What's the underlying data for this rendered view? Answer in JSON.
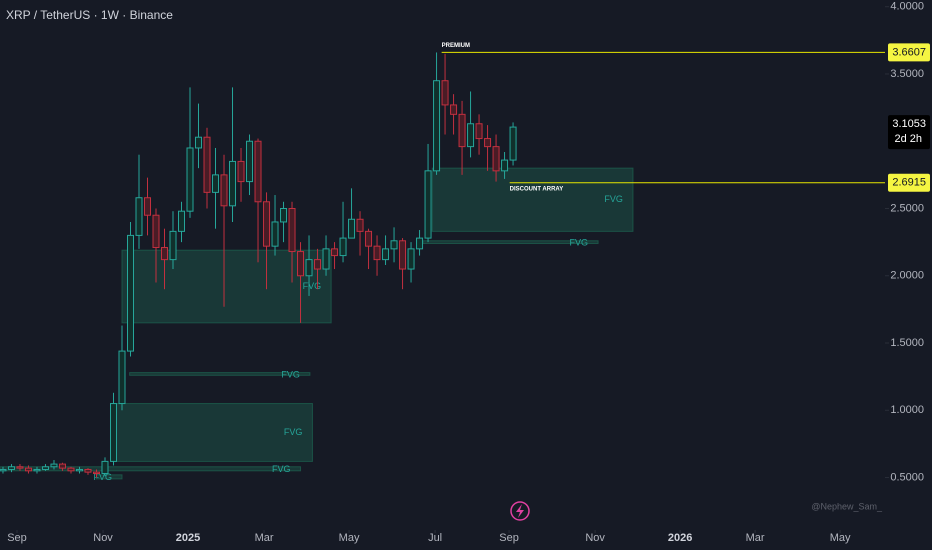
{
  "chart_data": {
    "type": "candlestick",
    "title": "XRP / TetherUS · 1W · Binance",
    "watermark": "@Nephew_Sam_",
    "up_color": "#26a69a",
    "down_color": "#c2303f",
    "open": [
      0.55,
      0.56,
      0.58,
      0.57,
      0.55,
      0.56,
      0.58,
      0.6,
      0.57,
      0.55,
      0.56,
      0.54,
      0.53,
      0.62,
      1.05,
      1.44,
      2.3,
      2.58,
      2.45,
      2.21,
      2.12,
      2.33,
      2.48,
      2.95,
      3.03,
      2.62,
      2.75,
      2.52,
      2.85,
      2.7,
      3.0,
      2.55,
      2.22,
      2.4,
      2.5,
      2.18,
      2.0,
      2.12,
      2.05,
      2.2,
      2.15,
      2.28,
      2.42,
      2.33,
      2.22,
      2.12,
      2.2,
      2.26,
      2.05,
      2.2,
      2.28,
      2.78,
      3.45,
      3.27,
      3.2,
      2.96,
      3.13,
      3.02,
      2.96,
      2.78,
      2.86
    ],
    "high": [
      0.58,
      0.6,
      0.6,
      0.59,
      0.58,
      0.6,
      0.63,
      0.61,
      0.58,
      0.58,
      0.57,
      0.56,
      0.65,
      1.13,
      1.63,
      2.4,
      2.9,
      2.73,
      2.5,
      2.35,
      2.48,
      2.55,
      3.4,
      3.28,
      3.1,
      2.95,
      2.9,
      3.4,
      2.95,
      3.05,
      3.02,
      2.62,
      2.6,
      2.55,
      2.55,
      2.25,
      2.3,
      2.2,
      2.3,
      2.25,
      2.55,
      2.65,
      2.48,
      2.35,
      2.3,
      2.3,
      2.36,
      2.28,
      2.25,
      2.34,
      2.98,
      3.66,
      3.65,
      3.35,
      3.3,
      3.37,
      3.2,
      3.12,
      3.05,
      2.92,
      3.14
    ],
    "low": [
      0.53,
      0.54,
      0.55,
      0.53,
      0.53,
      0.55,
      0.56,
      0.55,
      0.53,
      0.53,
      0.52,
      0.5,
      0.51,
      0.59,
      1.0,
      1.4,
      2.2,
      2.3,
      1.95,
      1.9,
      2.05,
      2.25,
      2.43,
      2.8,
      2.5,
      2.35,
      1.77,
      2.4,
      2.55,
      2.6,
      2.1,
      1.9,
      2.15,
      2.25,
      1.95,
      1.65,
      1.85,
      1.9,
      2.0,
      2.05,
      2.1,
      2.3,
      2.15,
      2.05,
      2.0,
      2.08,
      2.1,
      1.9,
      1.95,
      2.15,
      2.25,
      2.75,
      3.05,
      3.05,
      2.75,
      2.88,
      2.9,
      2.78,
      2.7,
      2.72,
      2.82
    ],
    "close": [
      0.56,
      0.58,
      0.57,
      0.55,
      0.56,
      0.58,
      0.6,
      0.57,
      0.55,
      0.56,
      0.54,
      0.53,
      0.62,
      1.05,
      1.44,
      2.3,
      2.58,
      2.45,
      2.21,
      2.12,
      2.33,
      2.48,
      2.95,
      3.03,
      2.62,
      2.75,
      2.52,
      2.85,
      2.7,
      3.0,
      2.55,
      2.22,
      2.4,
      2.5,
      2.18,
      2.0,
      2.12,
      2.05,
      2.2,
      2.15,
      2.28,
      2.42,
      2.33,
      2.22,
      2.12,
      2.2,
      2.26,
      2.05,
      2.2,
      2.28,
      2.78,
      3.45,
      3.27,
      3.2,
      2.96,
      3.13,
      3.02,
      2.96,
      2.78,
      2.86,
      3.1053
    ],
    "last_price": {
      "value": 3.1053,
      "label": "3.1053"
    },
    "countdown": "2d 2h",
    "xlim": [
      -0.35,
      103.75
    ],
    "xticks": [
      {
        "value": 1.65,
        "label": "Sep"
      },
      {
        "value": 11.77,
        "label": "Nov"
      },
      {
        "value": 21.77,
        "label": "2025"
      },
      {
        "value": 30.71,
        "label": "Mar"
      },
      {
        "value": 40.71,
        "label": "May"
      },
      {
        "value": 50.83,
        "label": "Jul"
      },
      {
        "value": 59.53,
        "label": "Sep"
      },
      {
        "value": 69.65,
        "label": "Nov"
      },
      {
        "value": 79.65,
        "label": "2026"
      },
      {
        "value": 88.47,
        "label": "Mar"
      },
      {
        "value": 98.47,
        "label": "May"
      }
    ],
    "ylim": [
      0.11,
      4.05
    ],
    "yticks": [
      {
        "value": 0.5,
        "label": "0.5000"
      },
      {
        "value": 1.0,
        "label": "1.0000"
      },
      {
        "value": 1.5,
        "label": "1.5000"
      },
      {
        "value": 2.0,
        "label": "2.0000"
      },
      {
        "value": 2.5,
        "label": "2.5000"
      },
      {
        "value": 3.5,
        "label": "3.5000"
      },
      {
        "value": 4.0,
        "label": "4.0000"
      }
    ],
    "levels": [
      {
        "value": 3.6607,
        "label": "3.6607",
        "text": "PREMIUM",
        "x": 51.6
      },
      {
        "value": 2.6915,
        "label": "2.6915",
        "text": "DISCOUNT ARRAY",
        "x": 59.6
      }
    ],
    "zones": [
      {
        "text": "FVG",
        "x": [
          14.0,
          38.6
        ],
        "y": [
          1.65,
          2.19
        ]
      },
      {
        "text": "FVG",
        "x": [
          12.8,
          36.4
        ],
        "y": [
          0.62,
          1.05
        ]
      },
      {
        "text": "FVG",
        "x": [
          14.9,
          36.1
        ],
        "y": [
          1.26,
          1.28
        ]
      },
      {
        "text": "FVG",
        "x": [
          -0.35,
          35.0
        ],
        "y": [
          0.55,
          0.58
        ]
      },
      {
        "text": "FVG",
        "x": [
          11.0,
          14.0
        ],
        "y": [
          0.49,
          0.52
        ]
      },
      {
        "text": "FVG",
        "x": [
          50.5,
          74.1
        ],
        "y": [
          2.33,
          2.8
        ]
      },
      {
        "text": "FVG",
        "x": [
          49.4,
          70.0
        ],
        "y": [
          2.24,
          2.26
        ]
      }
    ]
  }
}
